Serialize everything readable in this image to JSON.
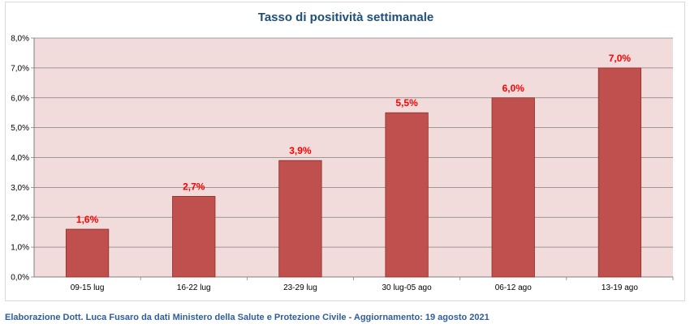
{
  "chart_data": {
    "type": "bar",
    "title": "Tasso di positività settimanale",
    "categories": [
      "09-15 lug",
      "16-22 lug",
      "23-29 lug",
      "30 lug-05 ago",
      "06-12 ago",
      "13-19 ago"
    ],
    "values": [
      1.6,
      2.7,
      3.9,
      5.5,
      6.0,
      7.0
    ],
    "data_labels": [
      "1,6%",
      "2,7%",
      "3,9%",
      "5,5%",
      "6,0%",
      "7,0%"
    ],
    "ylim": [
      0,
      8
    ],
    "yticks": [
      0,
      1,
      2,
      3,
      4,
      5,
      6,
      7,
      8
    ],
    "ytick_labels": [
      "0,0%",
      "1,0%",
      "2,0%",
      "3,0%",
      "4,0%",
      "5,0%",
      "6,0%",
      "7,0%",
      "8,0%"
    ],
    "xlabel": "",
    "ylabel": "",
    "grid": true,
    "legend": "none",
    "colors": {
      "bar": "#c0504d",
      "bar_border": "#8c2d2a",
      "plot_background": "#f2dcdb",
      "data_label": "#ff0000",
      "title": "#1f4e79",
      "gridline": "#808080"
    }
  },
  "footer": {
    "text": "Elaborazione Dott. Luca Fusaro da dati Ministero della Salute e Protezione Civile - Aggiornamento: 19 agosto 2021"
  }
}
